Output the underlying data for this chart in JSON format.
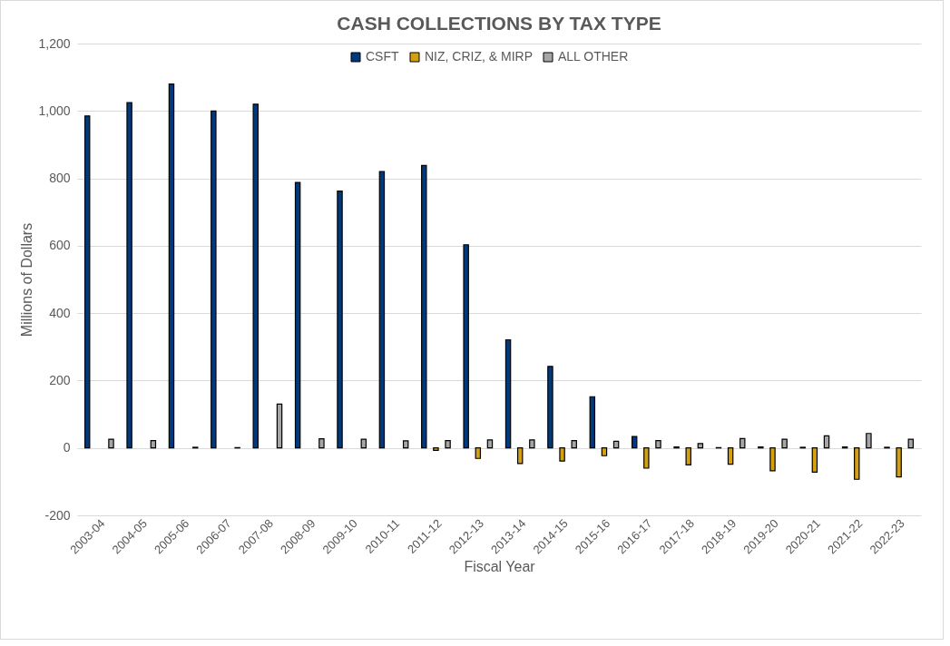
{
  "chart_data": {
    "type": "bar",
    "title": "CASH COLLECTIONS BY TAX TYPE",
    "xlabel": "Fiscal Year",
    "ylabel": "Millions of Dollars",
    "categories": [
      "2003-04",
      "2004-05",
      "2005-06",
      "2006-07",
      "2007-08",
      "2008-09",
      "2009-10",
      "2010-11",
      "2011-12",
      "2012-13",
      "2013-14",
      "2014-15",
      "2015-16",
      "2016-17",
      "2017-18",
      "2018-19",
      "2019-20",
      "2020-21",
      "2021-22",
      "2022-23"
    ],
    "series": [
      {
        "name": "CSFT",
        "color": "#003a7d",
        "values": [
          985,
          1025,
          1080,
          1000,
          1020,
          788,
          762,
          820,
          838,
          603,
          321,
          242,
          152,
          34,
          3,
          1,
          3,
          2,
          3,
          2
        ]
      },
      {
        "name": "NIZ, CRIZ, & MIRP",
        "color": "#d4a010",
        "values": [
          null,
          null,
          null,
          null,
          null,
          null,
          null,
          null,
          -7,
          -31,
          -46,
          -39,
          -23,
          -60,
          -50,
          -48,
          -68,
          -72,
          -93,
          -86
        ]
      },
      {
        "name": "ALL OTHER",
        "color": "#a6a6a6",
        "values": [
          26,
          22,
          2,
          1,
          130,
          27,
          26,
          21,
          22,
          24,
          24,
          22,
          20,
          22,
          13,
          28,
          26,
          36,
          43,
          26
        ]
      }
    ],
    "ylim": [
      -200,
      1200
    ],
    "yticks": [
      -200,
      0,
      200,
      400,
      600,
      800,
      {
        "value": 1000,
        "label": "1,000"
      },
      {
        "value": 1200,
        "label": "1,200"
      }
    ],
    "grid": "y",
    "legend": "top"
  }
}
